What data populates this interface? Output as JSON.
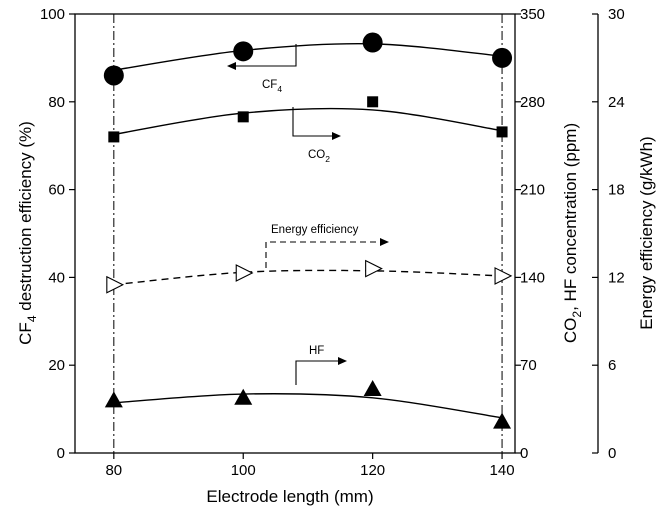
{
  "chart_data": {
    "type": "scatter",
    "xlabel": "Electrode length (mm)",
    "x_ticks": [
      80,
      100,
      120,
      140
    ],
    "xlim": [
      74,
      142
    ],
    "left_axis": {
      "label_main": "CF",
      "label_sub": "4",
      "label_rest": " destruction efficiency (%)",
      "ylim": [
        0,
        100
      ],
      "ticks": [
        0,
        20,
        40,
        60,
        80,
        100
      ]
    },
    "right_axis_1": {
      "label_main": "CO",
      "label_sub": "2",
      "label_rest": ", HF concentration (ppm)",
      "ylim": [
        0,
        350
      ],
      "ticks": [
        0,
        70,
        140,
        210,
        280,
        350
      ]
    },
    "right_axis_2": {
      "label": "Energy efficiency (g/kWh)",
      "ylim": [
        0,
        30
      ],
      "ticks": [
        0,
        6,
        12,
        18,
        24,
        30
      ]
    },
    "vertical_reference_lines": [
      80,
      140
    ],
    "series": [
      {
        "axis": "left",
        "marker": "circle",
        "x": [
          80,
          100,
          120,
          140
        ],
        "y": [
          86,
          91.5,
          93.5,
          90
        ],
        "fit_line": "solid",
        "fit_y": [
          87.2,
          91.7,
          93.2,
          90.4
        ]
      },
      {
        "axis": "right_1",
        "marker": "square",
        "x": [
          80,
          100,
          120,
          140
        ],
        "y": [
          252,
          268,
          280,
          256
        ],
        "fit_line": "solid",
        "fit_y": [
          254,
          271,
          273.5,
          257
        ]
      },
      {
        "axis": "right_2",
        "marker": "triangle-right-open",
        "x": [
          80,
          100,
          120,
          140
        ],
        "y": [
          11.5,
          12.3,
          12.6,
          12.1
        ],
        "fit_line": "dashed",
        "fit_y": [
          11.5,
          12.35,
          12.45,
          12.1
        ]
      },
      {
        "axis": "right_1",
        "marker": "triangle-up",
        "x": [
          80,
          100,
          120,
          140
        ],
        "y": [
          42,
          44,
          51,
          25
        ],
        "fit_line": "solid",
        "fit_y": [
          40,
          47,
          44,
          28
        ]
      }
    ],
    "annotations": [
      {
        "text": "CF",
        "sub": "4"
      },
      {
        "text": "CO",
        "sub": "2"
      },
      {
        "text": "Energy efficiency",
        "sub": ""
      },
      {
        "text": "HF",
        "sub": ""
      }
    ]
  }
}
